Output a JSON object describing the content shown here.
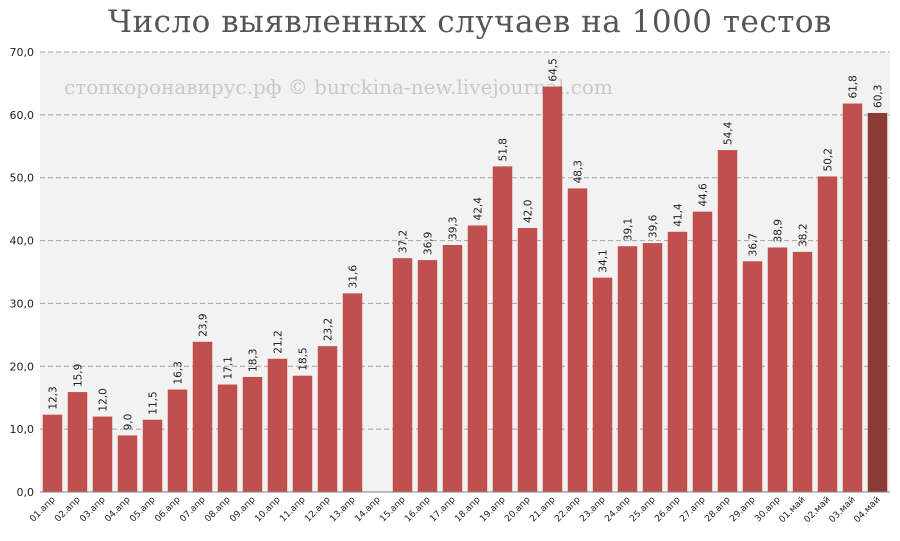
{
  "chart_data": {
    "type": "bar",
    "title": "Число выявленных случаев на 1000 тестов",
    "watermark": "стопкоронавирус.рф © burckina-new.livejournal.com",
    "xlabel": "",
    "ylabel": "",
    "ylim": [
      0,
      70
    ],
    "yticks": [
      "0,0",
      "10,0",
      "20,0",
      "30,0",
      "40,0",
      "50,0",
      "60,0",
      "70,0"
    ],
    "grid": true,
    "colors": {
      "bar": "#c0504d",
      "highlight": "#8b3a36",
      "plot_bg": "#f2f2f2",
      "grid": "#a6a6a6"
    },
    "highlight_index": 33,
    "categories": [
      "01.апр",
      "02.апр",
      "03.апр",
      "04.апр",
      "05.апр",
      "06.апр",
      "07.апр",
      "08.апр",
      "09.апр",
      "10.апр",
      "11.апр",
      "12.апр",
      "13.апр",
      "14.апр",
      "15.апр",
      "16.апр",
      "17.апр",
      "18.апр",
      "19.апр",
      "20.апр",
      "21.апр",
      "22.апр",
      "23.апр",
      "24.апр",
      "25.апр",
      "26.апр",
      "27.апр",
      "28.апр",
      "29.апр",
      "30.апр",
      "01.май",
      "02.май",
      "03.май",
      "04.май"
    ],
    "values": [
      12.3,
      15.9,
      12.0,
      9.0,
      11.5,
      16.3,
      23.9,
      17.1,
      18.3,
      21.2,
      18.5,
      23.2,
      31.6,
      null,
      37.2,
      36.9,
      39.3,
      42.4,
      51.8,
      42.0,
      64.5,
      48.3,
      34.1,
      39.1,
      39.6,
      41.4,
      44.6,
      54.4,
      36.7,
      38.9,
      38.2,
      50.2,
      61.8,
      60.3
    ],
    "value_labels": [
      "12,3",
      "15,9",
      "12,0",
      "9,0",
      "11,5",
      "16,3",
      "23,9",
      "17,1",
      "18,3",
      "21,2",
      "18,5",
      "23,2",
      "31,6",
      "",
      "37,2",
      "36,9",
      "39,3",
      "42,4",
      "51,8",
      "42,0",
      "64,5",
      "48,3",
      "34,1",
      "39,1",
      "39,6",
      "41,4",
      "44,6",
      "54,4",
      "36,7",
      "38,9",
      "38,2",
      "50,2",
      "61,8",
      "60,3"
    ]
  }
}
